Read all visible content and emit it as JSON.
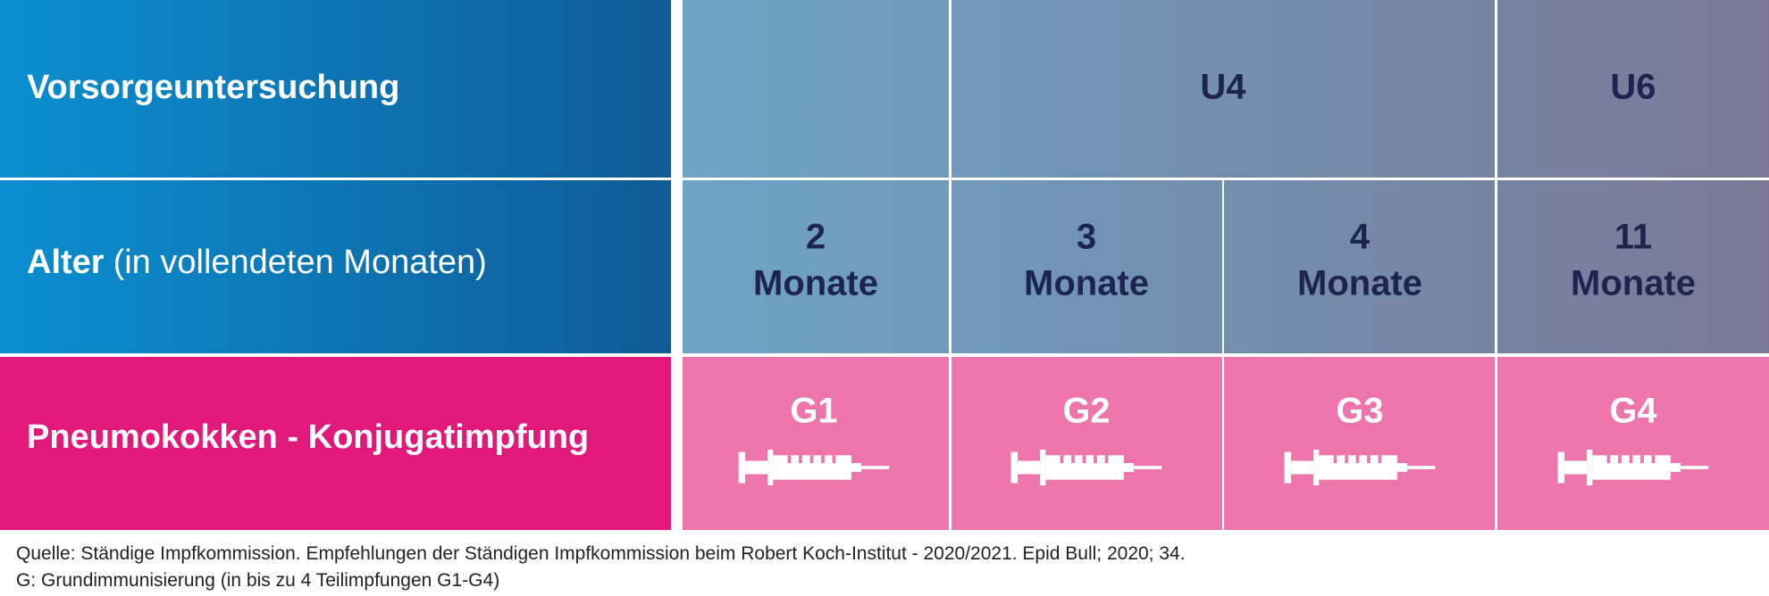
{
  "header": {
    "label": "Vorsorgeuntersuchung",
    "u4": "U4",
    "u6": "U6"
  },
  "age": {
    "label_bold": "Alter",
    "label_rest": "(in vollendeten Monaten)",
    "cells": [
      {
        "number": "2",
        "unit": "Monate"
      },
      {
        "number": "3",
        "unit": "Monate"
      },
      {
        "number": "4",
        "unit": "Monate"
      },
      {
        "number": "11",
        "unit": "Monate"
      }
    ]
  },
  "vaccine": {
    "label": "Pneumokokken - Konjugatimpfung",
    "doses": [
      "G1",
      "G2",
      "G3",
      "G4"
    ]
  },
  "footer": {
    "source": "Quelle: Ständige Impfkommission. Empfehlungen der Ständigen Impfkommission beim Robert Koch-Institut - 2020/2021. Epid Bull; 2020; 34.",
    "note": "G: Grundimmunisierung (in bis zu 4 Teilimpfungen G1-G4)"
  }
}
